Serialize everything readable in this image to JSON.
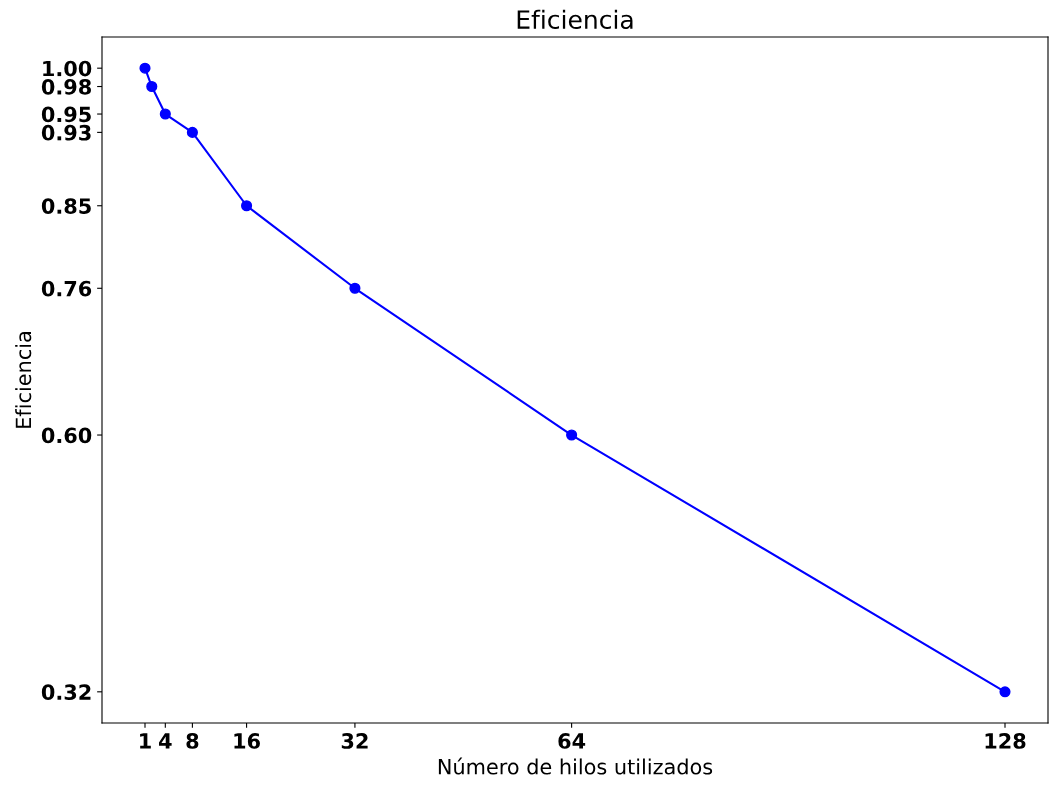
{
  "chart_data": {
    "type": "line",
    "title": "Eficiencia",
    "xlabel": "Número de hilos utilizados",
    "ylabel": "Eficiencia",
    "x": [
      1,
      2,
      4,
      8,
      16,
      32,
      64,
      128
    ],
    "series": [
      {
        "color": "#0000ff",
        "values": [
          1.0,
          0.98,
          0.95,
          0.93,
          0.85,
          0.76,
          0.6,
          0.32
        ]
      }
    ],
    "xlim": [
      -5.35,
      134.35
    ],
    "ylim": [
      0.286,
      1.034
    ],
    "xticks": [
      1,
      4,
      8,
      16,
      32,
      64,
      128
    ],
    "yticks": [
      {
        "value": 1.0,
        "label": "1.00"
      },
      {
        "value": 0.98,
        "label": "0.98"
      },
      {
        "value": 0.95,
        "label": "0.95"
      },
      {
        "value": 0.93,
        "label": "0.93"
      },
      {
        "value": 0.85,
        "label": "0.85"
      },
      {
        "value": 0.76,
        "label": "0.76"
      },
      {
        "value": 0.6,
        "label": "0.60"
      },
      {
        "value": 0.32,
        "label": "0.32"
      }
    ],
    "marker": "circle",
    "line_style": "solid",
    "grid": false,
    "legend": false
  }
}
